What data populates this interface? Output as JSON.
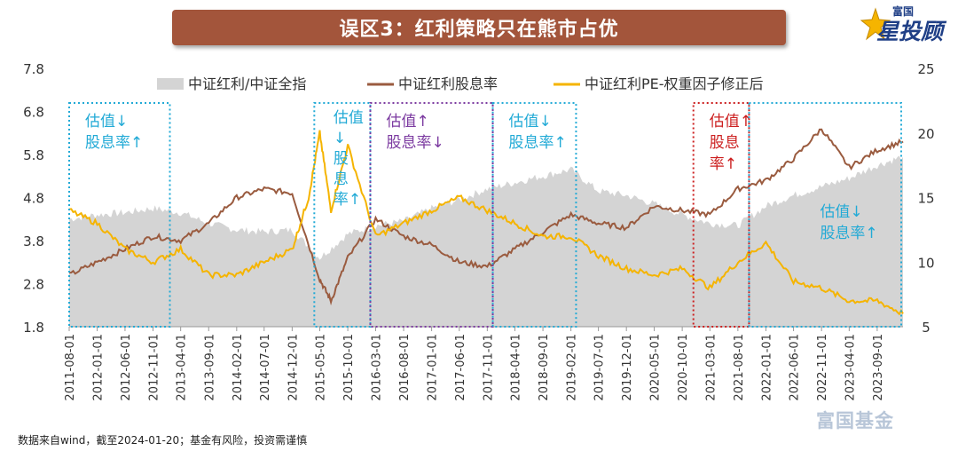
{
  "header": {
    "title": "误区3：红利策略只在熊市占优"
  },
  "logo": {
    "brand_top": "富国",
    "brand_main": "星投顾"
  },
  "footer": {
    "source": "数据来自wind，截至2024-01-20；基金有风险，投资需谨慎",
    "watermark": "富国基金"
  },
  "colors": {
    "area": "#d4d4d4",
    "dividend": "#9a5b3f",
    "pe": "#f5b400",
    "box_cyan": "#22aad6",
    "box_purple": "#7b3aa0",
    "box_red": "#cc1f1f"
  },
  "chart_data": {
    "type": "line",
    "series": [
      {
        "name": "中证红利/中证全指",
        "kind": "area",
        "axis": "left",
        "x": [
          "2011-08-01",
          "2012-01-01",
          "2012-06-01",
          "2012-11-01",
          "2013-04-01",
          "2013-09-01",
          "2014-02-01",
          "2014-07-01",
          "2014-12-01",
          "2015-05-01",
          "2015-10-01",
          "2016-03-01",
          "2016-08-01",
          "2017-01-01",
          "2017-06-01",
          "2017-11-01",
          "2018-04-01",
          "2018-09-01",
          "2019-02-01",
          "2019-07-01",
          "2019-12-01",
          "2020-05-01",
          "2020-10-01",
          "2021-03-01",
          "2021-08-01",
          "2022-01-01",
          "2022-06-01",
          "2022-11-01",
          "2023-04-01",
          "2023-09-01",
          "2024-01-20"
        ],
        "values": [
          4.3,
          4.4,
          4.45,
          4.55,
          4.45,
          4.2,
          4.05,
          4.0,
          4.05,
          3.4,
          3.95,
          4.15,
          4.25,
          4.55,
          4.75,
          5.0,
          5.15,
          5.3,
          5.45,
          4.95,
          4.85,
          4.65,
          4.4,
          4.2,
          4.15,
          4.6,
          4.85,
          5.05,
          5.25,
          5.55,
          5.75
        ]
      },
      {
        "name": "中证红利股息率",
        "kind": "line",
        "axis": "left",
        "x": [
          "2011-08-01",
          "2012-01-01",
          "2012-06-01",
          "2012-11-01",
          "2013-04-01",
          "2013-09-01",
          "2014-02-01",
          "2014-07-01",
          "2014-12-01",
          "2015-05-01",
          "2015-07-01",
          "2015-10-01",
          "2016-03-01",
          "2016-08-01",
          "2017-01-01",
          "2017-06-01",
          "2017-11-01",
          "2018-04-01",
          "2018-09-01",
          "2019-02-01",
          "2019-07-01",
          "2019-12-01",
          "2020-05-01",
          "2020-10-01",
          "2021-03-01",
          "2021-08-01",
          "2022-01-01",
          "2022-06-01",
          "2022-11-01",
          "2023-04-01",
          "2023-09-01",
          "2024-01-20"
        ],
        "values": [
          3.0,
          3.3,
          3.6,
          3.9,
          3.8,
          4.2,
          4.8,
          5.0,
          4.9,
          2.9,
          2.4,
          3.4,
          4.3,
          3.9,
          3.7,
          3.3,
          3.2,
          3.6,
          4.0,
          4.4,
          4.2,
          4.1,
          4.6,
          4.5,
          4.4,
          5.0,
          5.2,
          5.7,
          6.4,
          5.5,
          5.9,
          6.1
        ]
      },
      {
        "name": "中证红利PE-权重因子修正后",
        "kind": "line",
        "axis": "right",
        "x": [
          "2011-08-01",
          "2012-01-01",
          "2012-06-01",
          "2012-11-01",
          "2013-04-01",
          "2013-09-01",
          "2014-02-01",
          "2014-07-01",
          "2014-12-01",
          "2015-03-01",
          "2015-05-01",
          "2015-07-01",
          "2015-10-01",
          "2016-03-01",
          "2016-08-01",
          "2017-01-01",
          "2017-06-01",
          "2017-11-01",
          "2018-04-01",
          "2018-09-01",
          "2019-02-01",
          "2019-07-01",
          "2019-12-01",
          "2020-05-01",
          "2020-10-01",
          "2021-03-01",
          "2021-08-01",
          "2022-01-01",
          "2022-06-01",
          "2022-11-01",
          "2023-04-01",
          "2023-09-01",
          "2024-01-20"
        ],
        "values": [
          14,
          13,
          11,
          10,
          11,
          9,
          9,
          10,
          11,
          15,
          20,
          14,
          19,
          12,
          13,
          14,
          15,
          14,
          13,
          12,
          12,
          10.5,
          9.5,
          9,
          9.5,
          8,
          10,
          11.5,
          8.5,
          8,
          7,
          7,
          6
        ]
      }
    ],
    "x_ticks": [
      "2011-08-01",
      "2012-01-01",
      "2012-06-01",
      "2012-11-01",
      "2013-04-01",
      "2013-09-01",
      "2014-02-01",
      "2014-07-01",
      "2014-12-01",
      "2015-05-01",
      "2015-10-01",
      "2016-03-01",
      "2016-08-01",
      "2017-01-01",
      "2017-06-01",
      "2017-11-01",
      "2018-04-01",
      "2018-09-01",
      "2019-02-01",
      "2019-07-01",
      "2019-12-01",
      "2020-05-01",
      "2020-10-01",
      "2021-03-01",
      "2021-08-01",
      "2022-01-01",
      "2022-06-01",
      "2022-11-01",
      "2023-04-01",
      "2023-09-01"
    ],
    "y_left_ticks": [
      "7.8",
      "6.8",
      "5.8",
      "4.8",
      "3.8",
      "2.8",
      "1.8"
    ],
    "y_left_range": [
      1.8,
      7.8
    ],
    "y_right_ticks": [
      "25",
      "20",
      "15",
      "10",
      "5"
    ],
    "y_right_range": [
      5,
      25
    ],
    "legend_position": "top",
    "annotations": [
      {
        "start": "2011-08-01",
        "end": "2013-02-01",
        "color_key": "box_cyan",
        "label": [
          "估值↓",
          "股息率↑"
        ],
        "label_pos": "top-left"
      },
      {
        "start": "2015-04-01",
        "end": "2016-02-01",
        "color_key": "box_cyan",
        "label": [
          "估值",
          "↓",
          "股",
          "息",
          "率↑"
        ],
        "label_pos": "top-center-narrow"
      },
      {
        "start": "2016-02-01",
        "end": "2017-12-01",
        "color_key": "box_purple",
        "label": [
          "估值↑",
          "股息率↓"
        ],
        "label_pos": "top-left"
      },
      {
        "start": "2017-12-01",
        "end": "2019-03-01",
        "color_key": "box_cyan",
        "label": [
          "估值↓",
          "股息率↑"
        ],
        "label_pos": "top-left"
      },
      {
        "start": "2020-12-01",
        "end": "2021-10-01",
        "color_key": "box_red",
        "label": [
          "估值↑",
          "股息",
          "率↑"
        ],
        "label_pos": "top-left"
      },
      {
        "start": "2021-10-01",
        "end": "2024-01-20",
        "color_key": "box_cyan",
        "label": [
          "估值↓",
          "股息率↑"
        ],
        "label_pos": "middle-right"
      }
    ]
  }
}
